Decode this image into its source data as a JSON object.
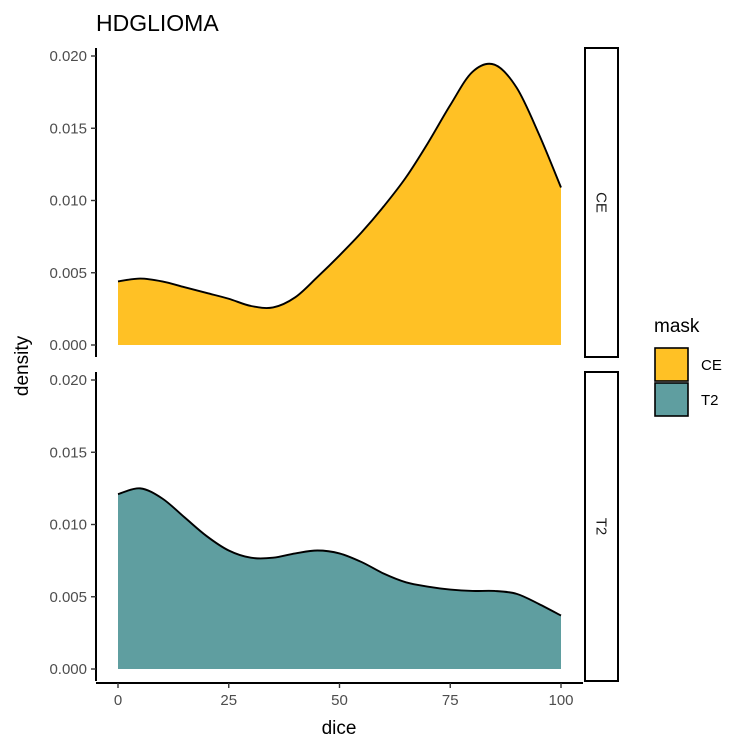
{
  "chart_data": {
    "type": "area",
    "title": "HDGLIOMA",
    "xlabel": "dice",
    "ylabel": "density",
    "xlim": [
      0,
      100
    ],
    "ylim": [
      0,
      0.02
    ],
    "x_ticks": [
      "0",
      "25",
      "50",
      "75",
      "100"
    ],
    "y_ticks": [
      "0.000",
      "0.005",
      "0.010",
      "0.015",
      "0.020"
    ],
    "grid": false,
    "legend": {
      "title": "mask",
      "position": "right",
      "entries": [
        {
          "label": "CE",
          "color": "#FFC125"
        },
        {
          "label": "T2",
          "color": "#5F9EA0"
        }
      ]
    },
    "panels": [
      {
        "strip": "CE",
        "color": "#FFC125",
        "x": [
          0,
          5,
          10,
          15,
          20,
          25,
          30,
          35,
          40,
          45,
          50,
          55,
          60,
          65,
          70,
          75,
          80,
          85,
          90,
          95,
          100
        ],
        "y": [
          0.0044,
          0.0046,
          0.0044,
          0.004,
          0.0036,
          0.0032,
          0.0027,
          0.0026,
          0.0033,
          0.0047,
          0.0062,
          0.0078,
          0.0096,
          0.0116,
          0.014,
          0.0166,
          0.0189,
          0.0194,
          0.0178,
          0.0146,
          0.0109
        ]
      },
      {
        "strip": "T2",
        "color": "#5F9EA0",
        "x": [
          0,
          5,
          10,
          15,
          20,
          25,
          30,
          35,
          40,
          45,
          50,
          55,
          60,
          65,
          70,
          75,
          80,
          85,
          90,
          95,
          100
        ],
        "y": [
          0.0121,
          0.0125,
          0.0118,
          0.0105,
          0.0092,
          0.0082,
          0.0077,
          0.0077,
          0.008,
          0.0082,
          0.008,
          0.0074,
          0.0066,
          0.006,
          0.0057,
          0.0055,
          0.0054,
          0.0054,
          0.0052,
          0.0045,
          0.0037
        ]
      }
    ]
  }
}
